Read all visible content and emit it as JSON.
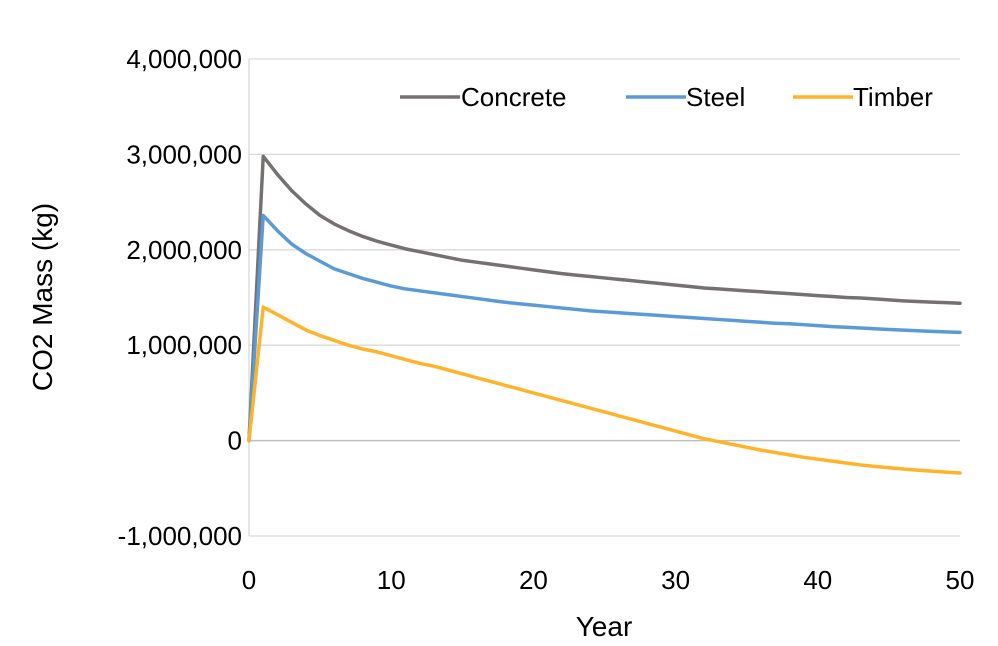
{
  "chart_data": {
    "type": "line",
    "title": "",
    "xlabel": "Year",
    "ylabel": "CO2 Mass (kg)",
    "xlim": [
      0,
      50
    ],
    "ylim": [
      -1000000,
      4000000
    ],
    "x_ticks": [
      0,
      10,
      20,
      30,
      40,
      50
    ],
    "x_tick_labels": [
      "0",
      "10",
      "20",
      "30",
      "40",
      "50"
    ],
    "y_ticks": [
      -1000000,
      0,
      1000000,
      2000000,
      3000000,
      4000000
    ],
    "y_tick_labels": [
      "-1,000,000",
      "0",
      "1,000,000",
      "2,000,000",
      "3,000,000",
      "4,000,000"
    ],
    "grid": "horizontal",
    "legend_position": "top-right",
    "x": [
      0,
      1,
      2,
      3,
      4,
      5,
      6,
      7,
      8,
      9,
      10,
      11,
      12,
      13,
      14,
      15,
      16,
      17,
      18,
      19,
      20,
      21,
      22,
      23,
      24,
      25,
      26,
      27,
      28,
      29,
      30,
      31,
      32,
      33,
      34,
      35,
      36,
      37,
      38,
      39,
      40,
      41,
      42,
      43,
      44,
      45,
      46,
      47,
      48,
      49,
      50
    ],
    "series": [
      {
        "name": "Concrete",
        "color": "#767171",
        "values": [
          0,
          2980000,
          2790000,
          2620000,
          2480000,
          2360000,
          2270000,
          2200000,
          2140000,
          2090000,
          2050000,
          2010000,
          1980000,
          1950000,
          1920000,
          1890000,
          1870000,
          1850000,
          1830000,
          1810000,
          1790000,
          1770000,
          1750000,
          1735000,
          1720000,
          1705000,
          1690000,
          1675000,
          1660000,
          1645000,
          1630000,
          1615000,
          1600000,
          1590000,
          1580000,
          1570000,
          1560000,
          1550000,
          1540000,
          1530000,
          1520000,
          1510000,
          1500000,
          1495000,
          1485000,
          1475000,
          1465000,
          1458000,
          1452000,
          1446000,
          1440000
        ]
      },
      {
        "name": "Steel",
        "color": "#5B9BD5",
        "values": [
          0,
          2360000,
          2200000,
          2060000,
          1960000,
          1880000,
          1800000,
          1750000,
          1700000,
          1660000,
          1620000,
          1590000,
          1570000,
          1550000,
          1530000,
          1510000,
          1490000,
          1470000,
          1450000,
          1435000,
          1420000,
          1405000,
          1390000,
          1375000,
          1360000,
          1350000,
          1340000,
          1330000,
          1320000,
          1310000,
          1300000,
          1290000,
          1280000,
          1270000,
          1260000,
          1250000,
          1240000,
          1230000,
          1225000,
          1215000,
          1205000,
          1195000,
          1188000,
          1180000,
          1172000,
          1165000,
          1158000,
          1151000,
          1145000,
          1140000,
          1135000
        ]
      },
      {
        "name": "Timber",
        "color": "#FFB32B",
        "values": [
          0,
          1400000,
          1320000,
          1240000,
          1160000,
          1100000,
          1050000,
          1000000,
          960000,
          930000,
          890000,
          850000,
          810000,
          780000,
          740000,
          700000,
          660000,
          620000,
          580000,
          540000,
          500000,
          460000,
          420000,
          380000,
          340000,
          300000,
          260000,
          220000,
          180000,
          140000,
          100000,
          60000,
          20000,
          -10000,
          -40000,
          -70000,
          -100000,
          -125000,
          -150000,
          -175000,
          -195000,
          -215000,
          -235000,
          -255000,
          -270000,
          -285000,
          -298000,
          -310000,
          -320000,
          -330000,
          -340000
        ]
      }
    ]
  }
}
